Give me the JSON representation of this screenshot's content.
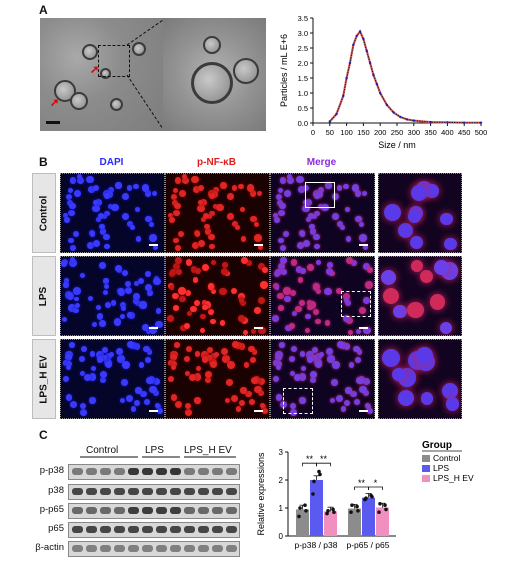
{
  "panels": {
    "a": "A",
    "b": "B",
    "c": "C"
  },
  "panel_a": {
    "scale_bar": true,
    "histogram": {
      "ylabel": "Particles / mL E+6",
      "xlabel": "Size / nm",
      "xlim": [
        0,
        500
      ],
      "ylim": [
        0,
        3.5
      ],
      "xticks": [
        "0",
        "50",
        "100",
        "150",
        "200",
        "250",
        "300",
        "350",
        "400",
        "450",
        "500"
      ],
      "yticks": [
        "0.0",
        "0.5",
        "1.0",
        "1.5",
        "2.0",
        "2.5",
        "3.0",
        "3.5"
      ]
    }
  },
  "chart_data": [
    {
      "type": "line",
      "title": "",
      "xlabel": "Size / nm",
      "ylabel": "Particles / mL E+6",
      "xlim": [
        0,
        500
      ],
      "ylim": [
        0,
        3.5
      ],
      "x": [
        50,
        70,
        90,
        100,
        110,
        120,
        130,
        140,
        150,
        160,
        170,
        180,
        190,
        200,
        220,
        240,
        260,
        280,
        300,
        350,
        400,
        450,
        500
      ],
      "series": [
        {
          "values": [
            0.05,
            0.3,
            0.9,
            1.5,
            2.0,
            2.6,
            2.9,
            3.05,
            2.8,
            2.4,
            2.0,
            1.6,
            1.3,
            1.0,
            0.6,
            0.35,
            0.2,
            0.12,
            0.08,
            0.03,
            0.02,
            0.01,
            0.01
          ]
        }
      ]
    },
    {
      "type": "bar",
      "title": "",
      "xlabel": "",
      "ylabel": "Relative expressions",
      "ylim": [
        0,
        3
      ],
      "yticks": [
        "0",
        "1",
        "2",
        "3"
      ],
      "categories": [
        "p-p38 / p38",
        "p-p65 / p65"
      ],
      "series": [
        {
          "name": "Control",
          "values": [
            0.95,
            0.98
          ],
          "color": "#8c8c8c",
          "points": [
            [
              0.7,
              1.1,
              1.0,
              0.9
            ],
            [
              0.85,
              1.05,
              1.1,
              0.9
            ]
          ]
        },
        {
          "name": "LPS",
          "values": [
            2.0,
            1.37
          ],
          "color": "#5a5af0",
          "points": [
            [
              1.5,
              2.3,
              1.95,
              2.2
            ],
            [
              1.3,
              1.45,
              1.35,
              1.4
            ]
          ]
        },
        {
          "name": "LPS_H EV",
          "values": [
            0.88,
            1.02
          ],
          "color": "#f08fc0",
          "points": [
            [
              0.8,
              0.95,
              0.9,
              0.85
            ],
            [
              0.85,
              1.1,
              1.15,
              0.95
            ]
          ]
        }
      ],
      "significance": [
        {
          "label": "**"
        },
        {
          "label": "**"
        },
        {
          "label": "**"
        },
        {
          "label": "*"
        }
      ],
      "legend_title": "Group",
      "legend_position": "top-right"
    }
  ],
  "panel_b": {
    "columns": [
      "DAPI",
      "p-NF-κB",
      "Merge"
    ],
    "rows": [
      "Control",
      "LPS",
      "LPS_H EV"
    ],
    "colors": {
      "dapi": "#2a2aff",
      "nfkb": "#e02020",
      "merge": "#8a2be2"
    }
  },
  "panel_c": {
    "groups": [
      "Control",
      "LPS",
      "LPS_H EV"
    ],
    "blots": [
      "p-p38",
      "p38",
      "p-p65",
      "p65",
      "β-actin"
    ]
  }
}
